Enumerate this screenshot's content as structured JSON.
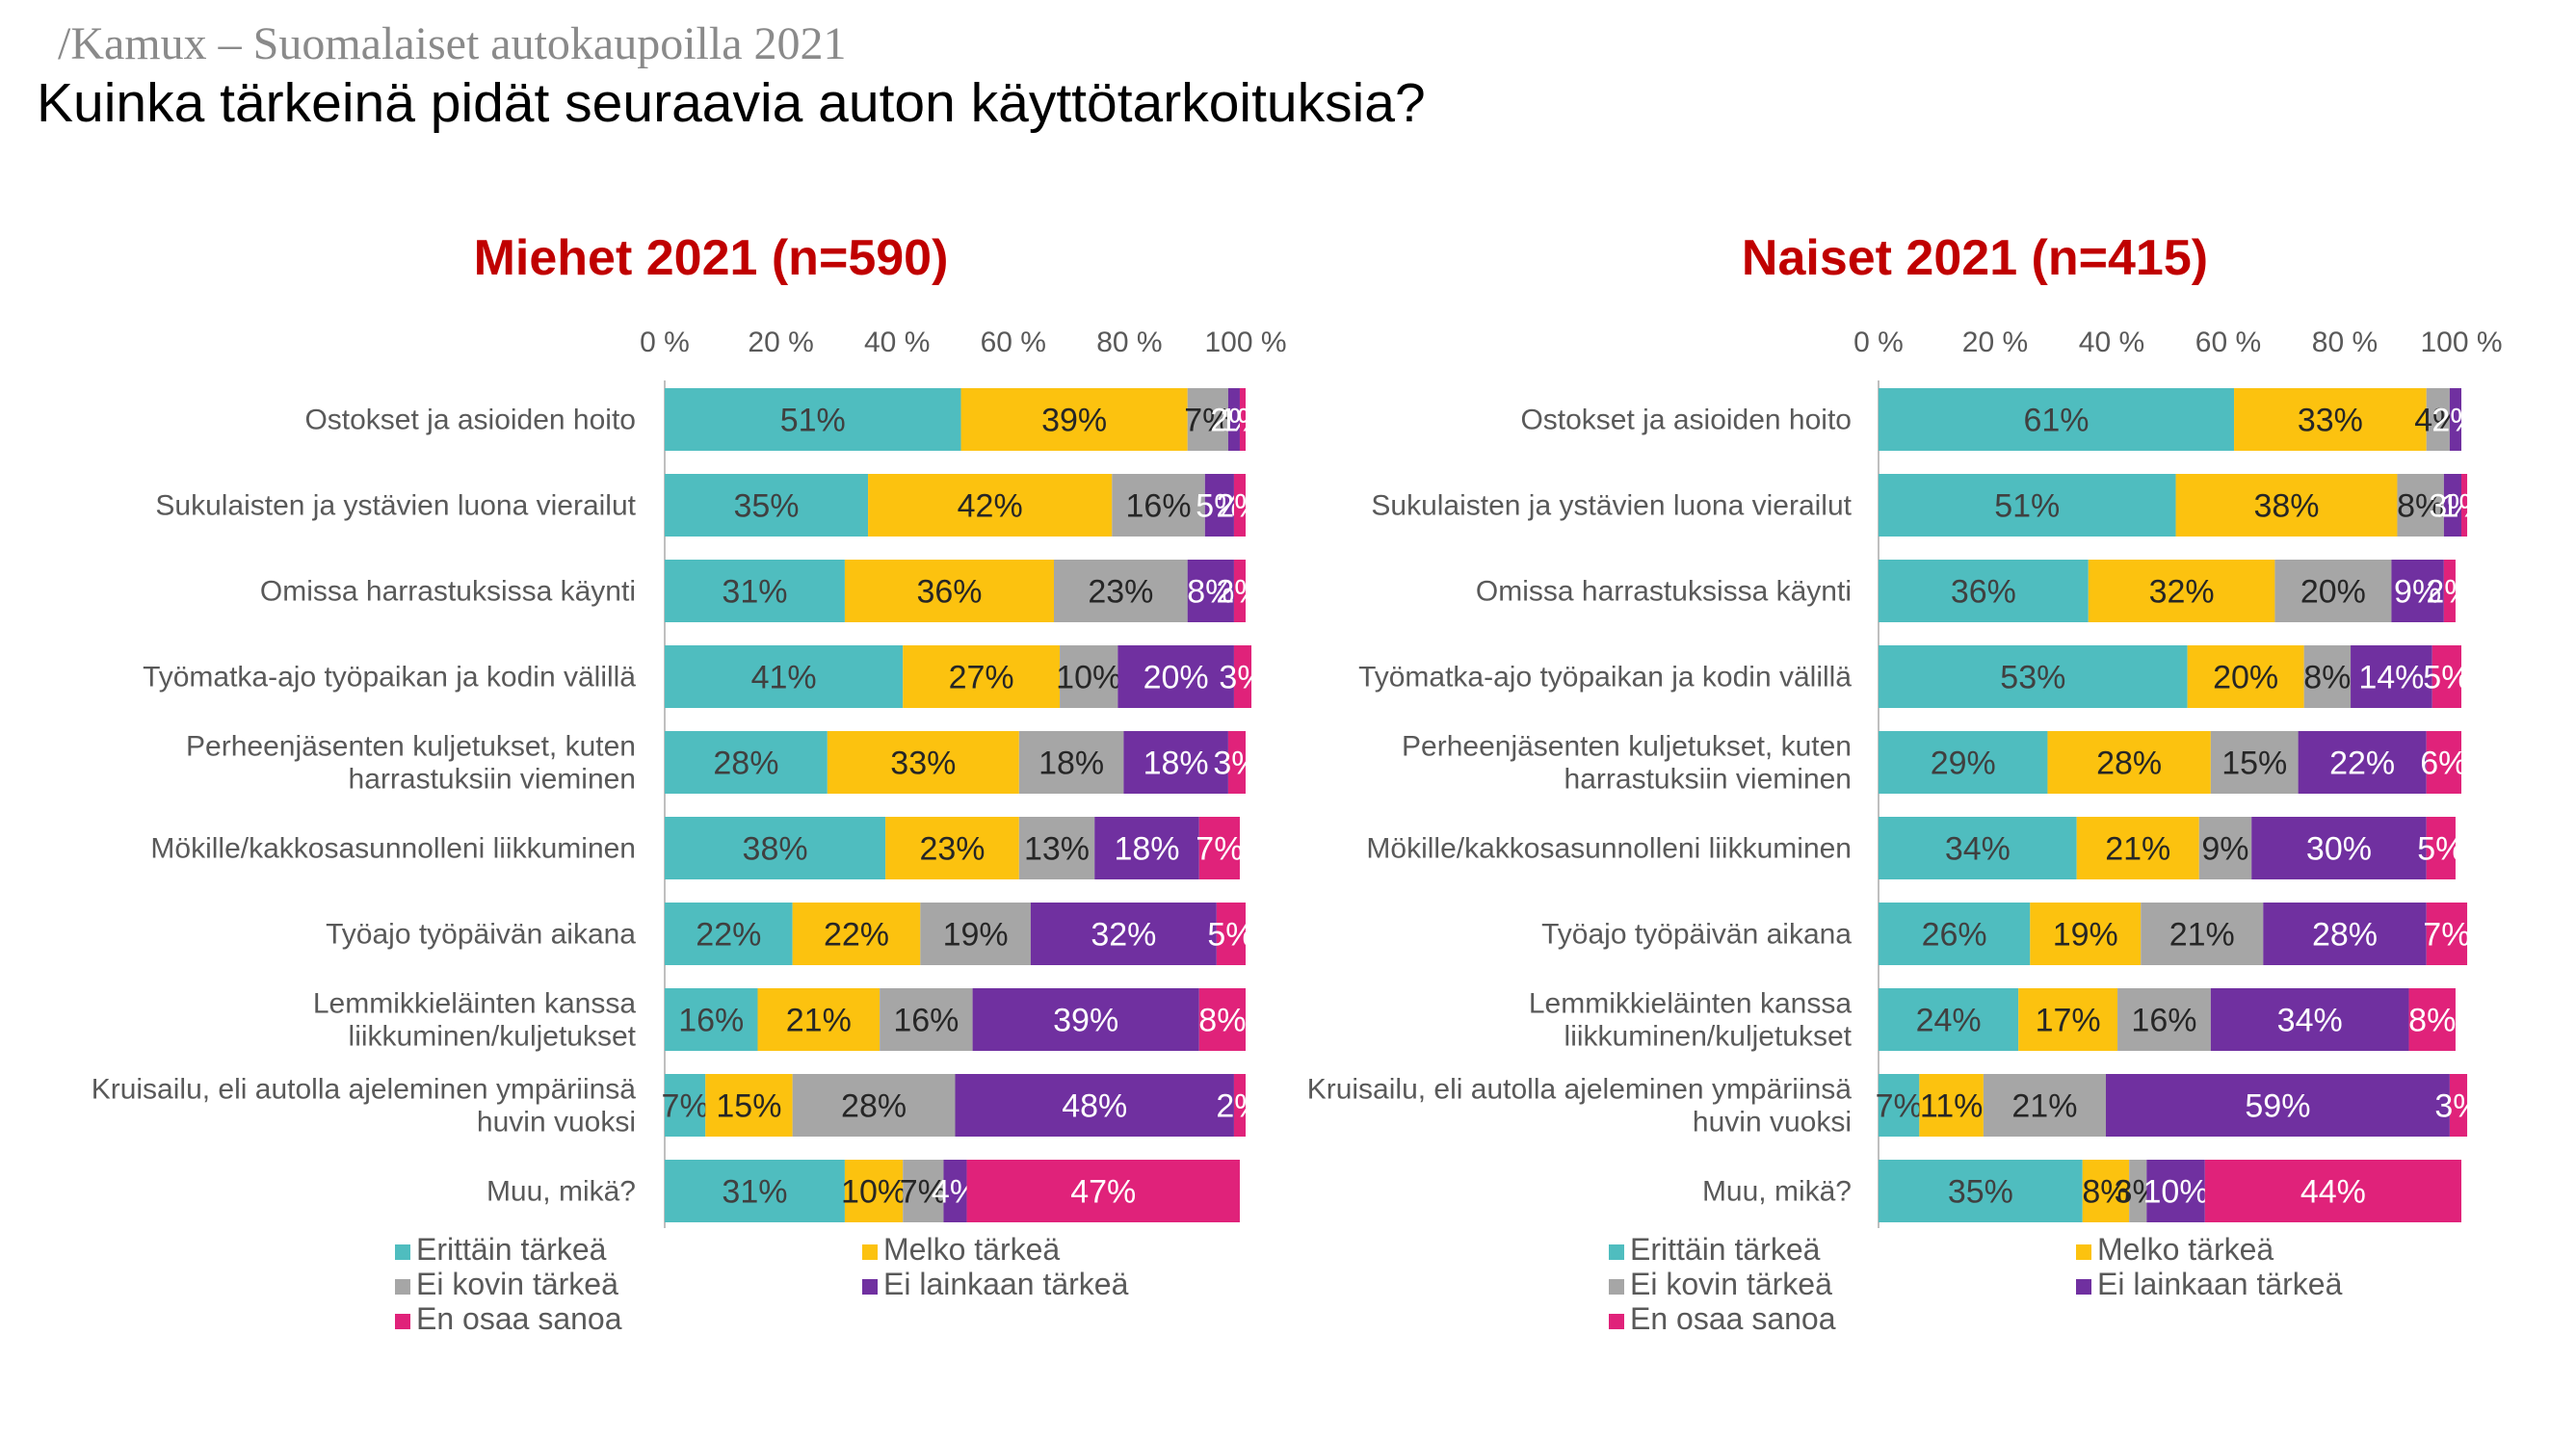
{
  "header": {
    "brand": "/Kamux – Suomalaiset autokaupoilla 2021",
    "title": "Kuinka tärkeinä pidät seuraavia auton käyttötarkoituksia?"
  },
  "colors": {
    "Erittäin tärkeä": "#4fbdbf",
    "Melko tärkeä": "#fcc20f",
    "Ei kovin tärkeä": "#a6a6a6",
    "Ei lainkaan tärkeä": "#7030a0",
    "En osaa sanoa": "#e0227a",
    "title_red": "#c00000"
  },
  "chart_data": [
    {
      "type": "bar",
      "orientation": "horizontal",
      "stacked": "percent",
      "title": "Miehet 2021 (n=590)",
      "xlim": [
        0,
        100
      ],
      "x_ticks": [
        "0 %",
        "20 %",
        "40 %",
        "60 %",
        "80 %",
        "100 %"
      ],
      "legend_position": "bottom",
      "categories": [
        [
          "Ostokset ja asioiden hoito"
        ],
        [
          "Sukulaisten ja ystävien luona vierailut"
        ],
        [
          "Omissa harrastuksissa käynti"
        ],
        [
          "Työmatka-ajo työpaikan ja kodin välillä"
        ],
        [
          "Perheenjäsenten kuljetukset, kuten",
          "harrastuksiin vieminen"
        ],
        [
          "Mökille/kakkosasunnolleni liikkuminen"
        ],
        [
          "Työajo työpäivän aikana"
        ],
        [
          "Lemmikkieläinten kanssa",
          "liikkuminen/kuljetukset"
        ],
        [
          "Kruisailu, eli autolla ajeleminen ympäriinsä",
          "huvin vuoksi"
        ],
        [
          "Muu, mikä?"
        ]
      ],
      "series": [
        {
          "name": "Erittäin tärkeä",
          "values": [
            51,
            35,
            31,
            41,
            28,
            38,
            22,
            16,
            7,
            31
          ]
        },
        {
          "name": "Melko tärkeä",
          "values": [
            39,
            42,
            36,
            27,
            33,
            23,
            22,
            21,
            15,
            10
          ]
        },
        {
          "name": "Ei kovin tärkeä",
          "values": [
            7,
            16,
            23,
            10,
            18,
            13,
            19,
            16,
            28,
            7
          ]
        },
        {
          "name": "Ei lainkaan tärkeä",
          "values": [
            2,
            5,
            8,
            20,
            18,
            18,
            32,
            39,
            48,
            4
          ]
        },
        {
          "name": "En osaa sanoa",
          "values": [
            1,
            2,
            2,
            3,
            3,
            7,
            5,
            8,
            2,
            47
          ]
        }
      ],
      "data_labels": [
        [
          "51%",
          "39%",
          "7%",
          "2%",
          "1%"
        ],
        [
          "35%",
          "42%",
          "16%",
          "5%",
          "2%"
        ],
        [
          "31%",
          "36%",
          "23%",
          "8%",
          "2%"
        ],
        [
          "41%",
          "27%",
          "10%",
          "20%",
          "3%"
        ],
        [
          "28%",
          "33%",
          "18%",
          "18%",
          "3%"
        ],
        [
          "38%",
          "23%",
          "13%",
          "18%",
          "7%"
        ],
        [
          "22%",
          "22%",
          "19%",
          "32%",
          "5%"
        ],
        [
          "16%",
          "21%",
          "16%",
          "39%",
          "8%"
        ],
        [
          "7%",
          "15%",
          "28%",
          "48%",
          "2%"
        ],
        [
          "31%",
          "10%",
          "7%",
          "4%",
          "47%"
        ]
      ]
    },
    {
      "type": "bar",
      "orientation": "horizontal",
      "stacked": "percent",
      "title": "Naiset 2021 (n=415)",
      "xlim": [
        0,
        100
      ],
      "x_ticks": [
        "0 %",
        "20 %",
        "40 %",
        "60 %",
        "80 %",
        "100 %"
      ],
      "legend_position": "bottom",
      "categories": [
        [
          "Ostokset ja asioiden hoito"
        ],
        [
          "Sukulaisten ja ystävien luona vierailut"
        ],
        [
          "Omissa harrastuksissa käynti"
        ],
        [
          "Työmatka-ajo työpaikan ja kodin välillä"
        ],
        [
          "Perheenjäsenten kuljetukset, kuten",
          "harrastuksiin vieminen"
        ],
        [
          "Mökille/kakkosasunnolleni liikkuminen"
        ],
        [
          "Työajo työpäivän aikana"
        ],
        [
          "Lemmikkieläinten kanssa",
          "liikkuminen/kuljetukset"
        ],
        [
          "Kruisailu, eli autolla ajeleminen ympäriinsä",
          "huvin vuoksi"
        ],
        [
          "Muu, mikä?"
        ]
      ],
      "series": [
        {
          "name": "Erittäin tärkeä",
          "values": [
            61,
            51,
            36,
            53,
            29,
            34,
            26,
            24,
            7,
            35
          ]
        },
        {
          "name": "Melko tärkeä",
          "values": [
            33,
            38,
            32,
            20,
            28,
            21,
            19,
            17,
            11,
            8
          ]
        },
        {
          "name": "Ei kovin tärkeä",
          "values": [
            4,
            8,
            20,
            8,
            15,
            9,
            21,
            16,
            21,
            3
          ]
        },
        {
          "name": "Ei lainkaan tärkeä",
          "values": [
            2,
            3,
            9,
            14,
            22,
            30,
            28,
            34,
            59,
            10
          ]
        },
        {
          "name": "En osaa sanoa",
          "values": [
            0,
            1,
            2,
            5,
            6,
            5,
            7,
            8,
            3,
            44
          ]
        }
      ],
      "data_labels": [
        [
          "61%",
          "33%",
          "4%",
          "2%",
          ""
        ],
        [
          "51%",
          "38%",
          "8%",
          "3%",
          "1%"
        ],
        [
          "36%",
          "32%",
          "20%",
          "9%",
          "2%"
        ],
        [
          "53%",
          "20%",
          "8%",
          "14%",
          "5%"
        ],
        [
          "29%",
          "28%",
          "15%",
          "22%",
          "6%"
        ],
        [
          "34%",
          "21%",
          "9%",
          "30%",
          "5%"
        ],
        [
          "26%",
          "19%",
          "21%",
          "28%",
          "7%"
        ],
        [
          "24%",
          "17%",
          "16%",
          "34%",
          "8%"
        ],
        [
          "7%",
          "11%",
          "21%",
          "59%",
          "3%"
        ],
        [
          "35%",
          "8%",
          "3%",
          "10%",
          "44%"
        ]
      ]
    }
  ]
}
